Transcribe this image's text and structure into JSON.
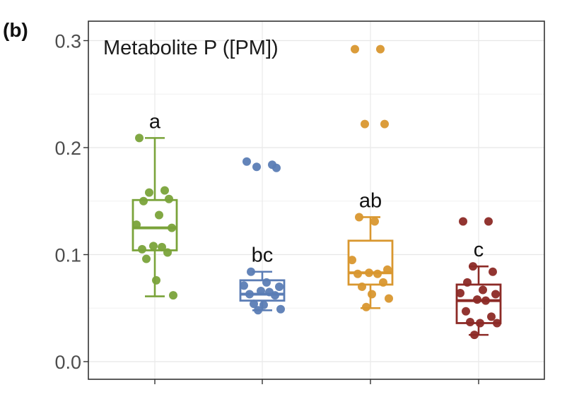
{
  "panel_label": "(b)",
  "chart_data": {
    "type": "box",
    "title": "Metabolite P ([PM])",
    "xlabel": "",
    "ylabel": "",
    "ylim": [
      -0.015,
      0.31
    ],
    "yticks": [
      0.0,
      0.1,
      0.2,
      0.3
    ],
    "ytick_labels": [
      "0.0",
      "0.1",
      "0.2",
      "0.3"
    ],
    "grid": true,
    "legend": "none",
    "groups": [
      {
        "color": "#7aa33a",
        "significance": "a",
        "box": {
          "whisker_low": 0.061,
          "q1": 0.104,
          "median": 0.125,
          "q3": 0.151,
          "whisker_high": 0.209
        },
        "points": [
          0.209,
          0.16,
          0.158,
          0.152,
          0.15,
          0.137,
          0.128,
          0.125,
          0.108,
          0.107,
          0.105,
          0.102,
          0.096,
          0.076,
          0.062
        ]
      },
      {
        "color": "#5b7db5",
        "significance": "bc",
        "box": {
          "whisker_low": 0.048,
          "q1": 0.057,
          "median": 0.063,
          "q3": 0.076,
          "whisker_high": 0.084
        },
        "points": [
          0.187,
          0.184,
          0.182,
          0.181,
          0.084,
          0.074,
          0.071,
          0.07,
          0.066,
          0.065,
          0.063,
          0.062,
          0.054,
          0.053,
          0.049,
          0.048
        ]
      },
      {
        "color": "#d9972f",
        "significance": "ab",
        "box": {
          "whisker_low": 0.05,
          "q1": 0.072,
          "median": 0.083,
          "q3": 0.113,
          "whisker_high": 0.135
        },
        "points": [
          0.292,
          0.292,
          0.222,
          0.222,
          0.135,
          0.131,
          0.095,
          0.086,
          0.083,
          0.082,
          0.082,
          0.074,
          0.07,
          0.063,
          0.059,
          0.051
        ]
      },
      {
        "color": "#8c2a26",
        "significance": "c",
        "box": {
          "whisker_low": 0.025,
          "q1": 0.036,
          "median": 0.057,
          "q3": 0.072,
          "whisker_high": 0.089
        },
        "points": [
          0.131,
          0.131,
          0.089,
          0.084,
          0.074,
          0.067,
          0.064,
          0.063,
          0.058,
          0.057,
          0.047,
          0.042,
          0.037,
          0.036,
          0.036,
          0.025
        ]
      }
    ]
  }
}
